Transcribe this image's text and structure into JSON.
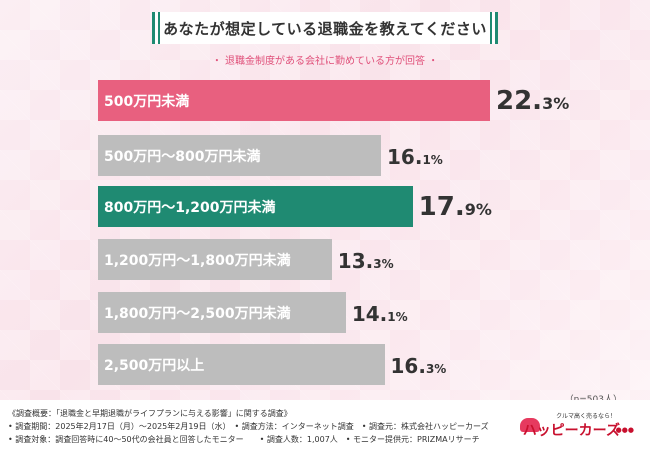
{
  "title": "あなたが想定している退職金を教えてください",
  "subtitle": "・ 退職金制度がある会社に勤めている方が回答 ・",
  "chart_data": {
    "type": "bar",
    "orientation": "horizontal",
    "title": "あなたが想定している退職金を教えてください",
    "categories": [
      "500万円未満",
      "500万円〜800万円未満",
      "800万円〜1,200万円未満",
      "1,200万円〜1,800万円未満",
      "1,800万円〜2,500万円未満",
      "2,500万円以上"
    ],
    "values": [
      22.3,
      16.1,
      17.9,
      13.3,
      14.1,
      16.3
    ],
    "value_labels": [
      {
        "int": "22.",
        "dec": "3%"
      },
      {
        "int": "16.",
        "dec": "1%"
      },
      {
        "int": "17.",
        "dec": "9%"
      },
      {
        "int": "13.",
        "dec": "3%"
      },
      {
        "int": "14.",
        "dec": "1%"
      },
      {
        "int": "16.",
        "dec": "3%"
      }
    ],
    "colors": [
      "#e8607f",
      "#bdbdbd",
      "#1f8a72",
      "#bdbdbd",
      "#bdbdbd",
      "#bdbdbd"
    ],
    "highlight": [
      true,
      false,
      true,
      false,
      false,
      false
    ]
  },
  "n_note": "（n=503人）",
  "footer": {
    "line1": "《調査概要：「退職金と早期退職がライフプランに与える影響」に関する調査》",
    "line2": "• 調査期間：2025年2月17日（月）〜2025年2月19日（水）　• 調査方法：インターネット調査　• 調査元：株式会社ハッピーカーズ",
    "line3": "• 調査対象：調査回答時に40〜50代の会社員と回答したモニター　　• 調査人数：1,007人　• モニター提供元：PRIZMAリサーチ"
  },
  "logo": {
    "tagline": "クルマ高く売るなら！",
    "name": "ハッピーカーズ",
    "dots": "●●●"
  }
}
